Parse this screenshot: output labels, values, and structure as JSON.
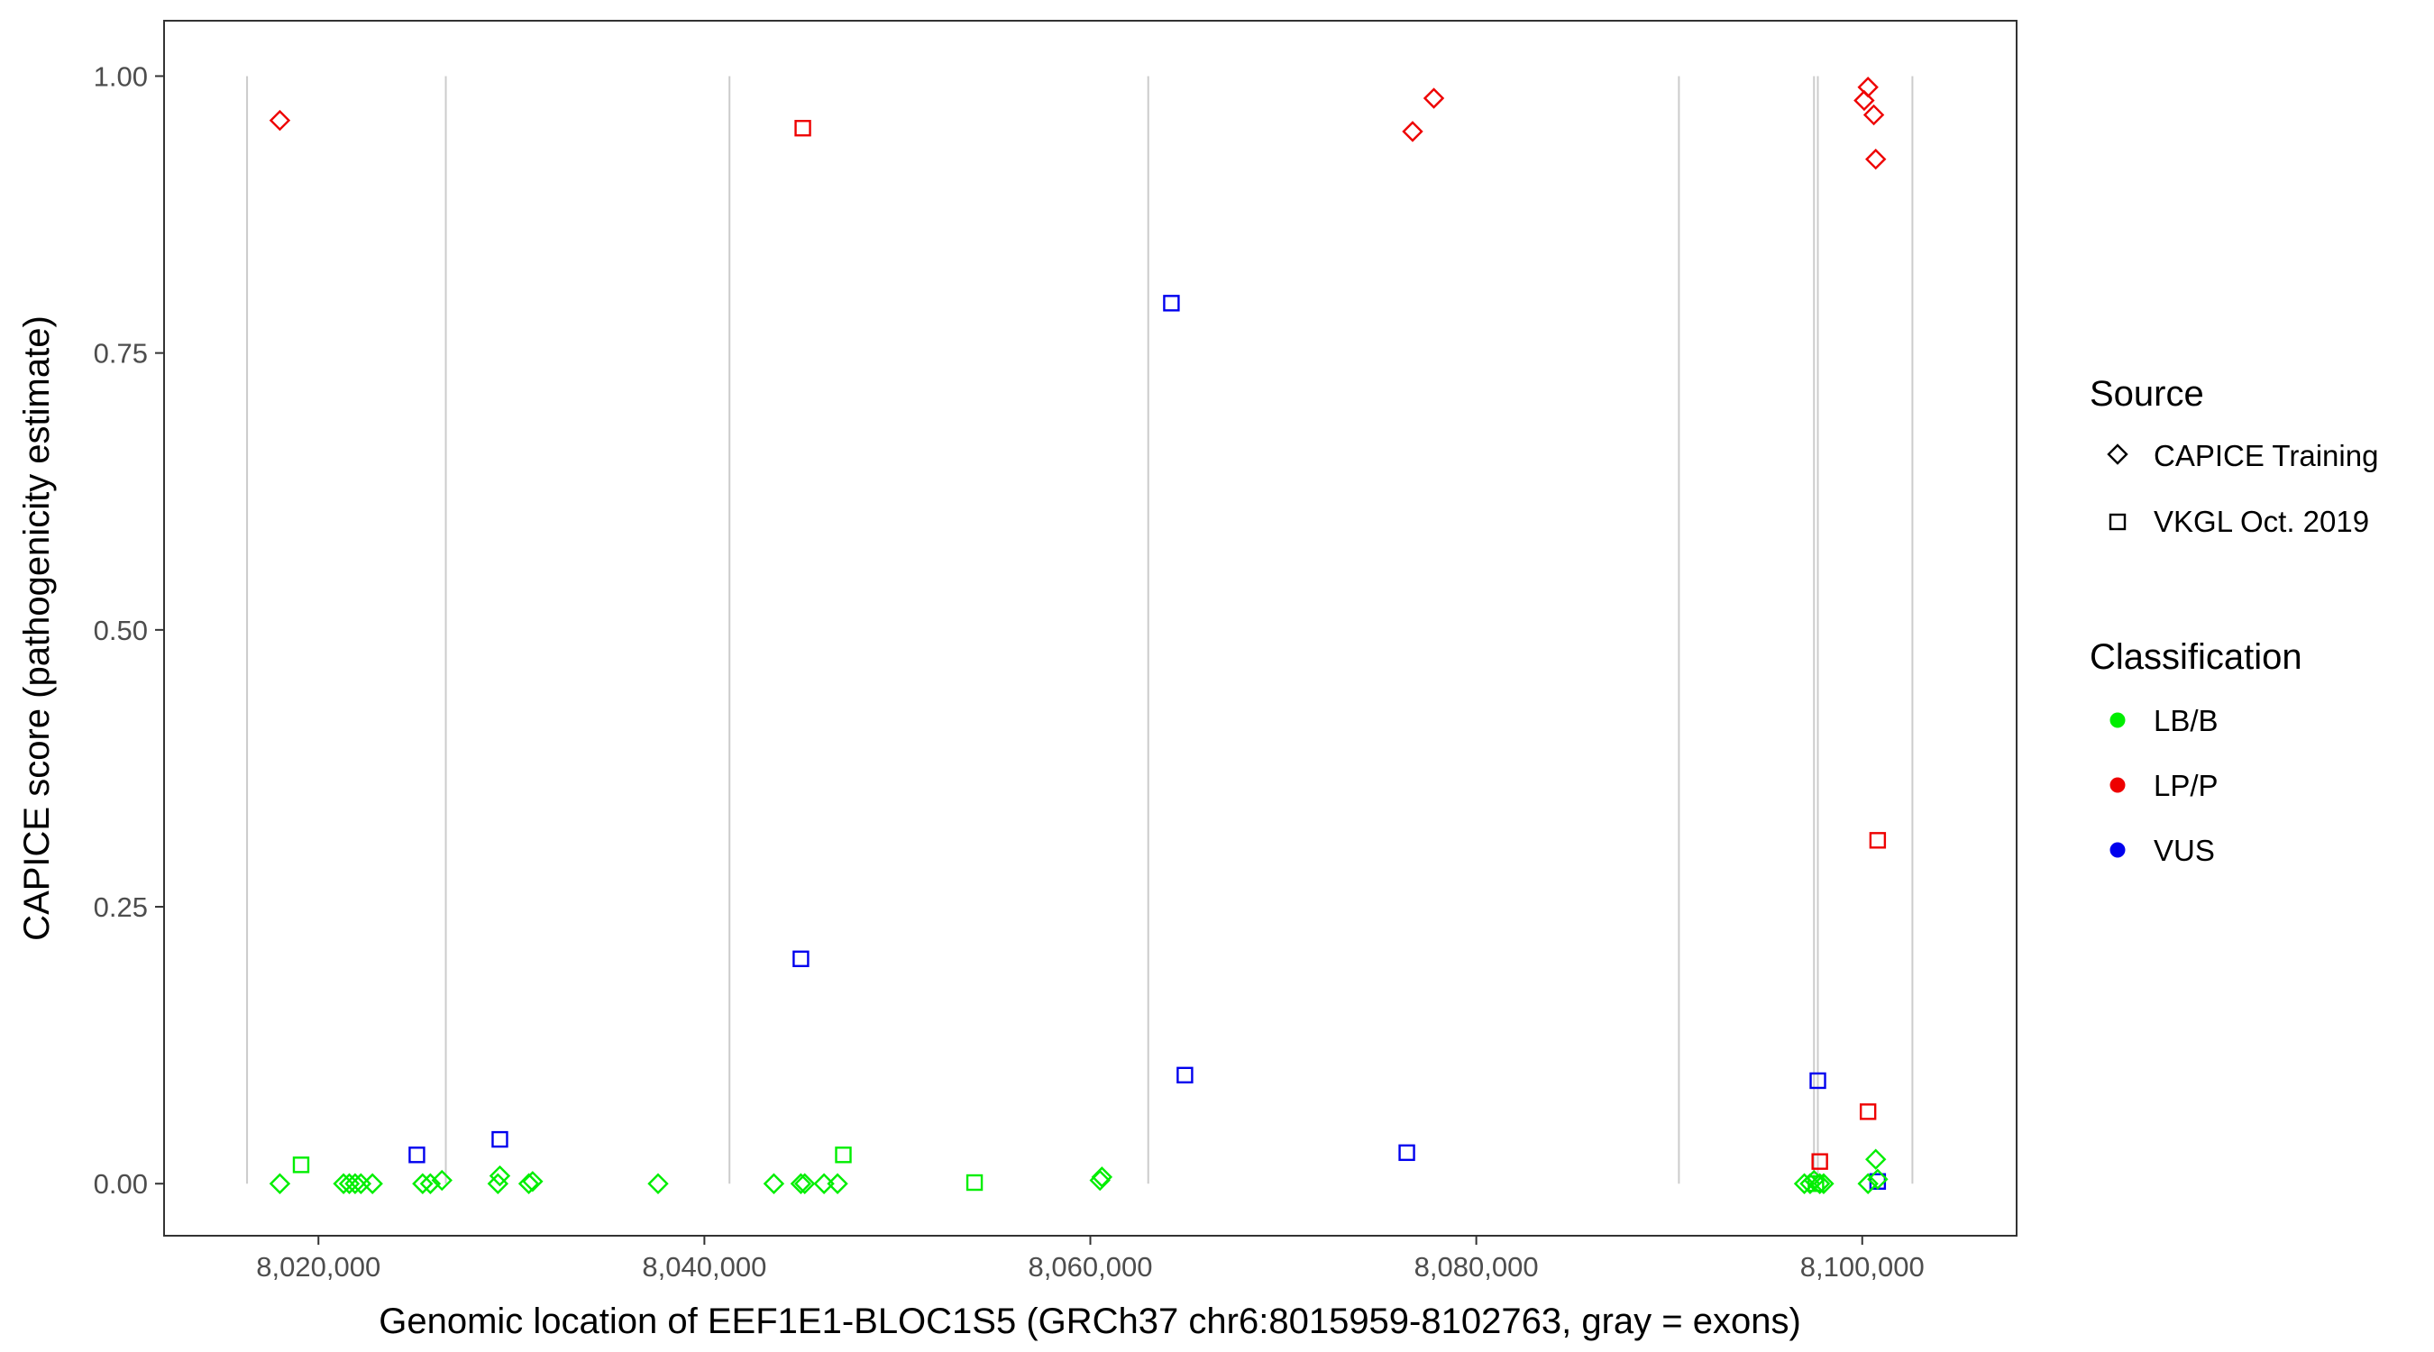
{
  "chart_data": {
    "type": "scatter",
    "xlabel": "Genomic location of EEF1E1-BLOC1S5 (GRCh37 chr6:8015959-8102763, gray = exons)",
    "ylabel": "CAPICE score (pathogenicity estimate)",
    "xlim": [
      8012000,
      8108000
    ],
    "ylim": [
      -0.047,
      1.05
    ],
    "x_ticks": [
      8020000,
      8040000,
      8060000,
      8080000,
      8100000
    ],
    "x_tick_labels": [
      "8,020,000",
      "8,040,000",
      "8,060,000",
      "8,080,000",
      "8,100,000"
    ],
    "y_ticks": [
      0,
      0.25,
      0.5,
      0.75,
      1
    ],
    "y_tick_labels": [
      "0.00",
      "0.25",
      "0.50",
      "0.75",
      "1.00"
    ],
    "grid": false,
    "exon_lines": [
      8016300,
      8026600,
      8041300,
      8063000,
      8090500,
      8097500,
      8097700,
      8102600
    ],
    "legend": {
      "placement": "right",
      "source_title": "Source",
      "source_entries": [
        {
          "label": "CAPICE Training",
          "shape": "diamond"
        },
        {
          "label": "VKGL Oct. 2019",
          "shape": "square"
        }
      ],
      "class_title": "Classification",
      "class_entries": [
        {
          "label": "LB/B",
          "color": "#00ee00"
        },
        {
          "label": "LP/P",
          "color": "#ee0000"
        },
        {
          "label": "VUS",
          "color": "#0000ee"
        }
      ]
    },
    "colors": {
      "LB/B": "#00ee00",
      "LP/P": "#ee0000",
      "VUS": "#0000ee"
    },
    "points": [
      {
        "x": 8018000,
        "y": 0.96,
        "cls": "LP/P",
        "src": "diamond"
      },
      {
        "x": 8045100,
        "y": 0.953,
        "cls": "LP/P",
        "src": "square"
      },
      {
        "x": 8076700,
        "y": 0.95,
        "cls": "LP/P",
        "src": "diamond"
      },
      {
        "x": 8077800,
        "y": 0.98,
        "cls": "LP/P",
        "src": "diamond"
      },
      {
        "x": 8100300,
        "y": 0.99,
        "cls": "LP/P",
        "src": "diamond"
      },
      {
        "x": 8100100,
        "y": 0.978,
        "cls": "LP/P",
        "src": "diamond"
      },
      {
        "x": 8100600,
        "y": 0.965,
        "cls": "LP/P",
        "src": "diamond"
      },
      {
        "x": 8100700,
        "y": 0.925,
        "cls": "LP/P",
        "src": "diamond"
      },
      {
        "x": 8100800,
        "y": 0.31,
        "cls": "LP/P",
        "src": "square"
      },
      {
        "x": 8100300,
        "y": 0.065,
        "cls": "LP/P",
        "src": "square"
      },
      {
        "x": 8097800,
        "y": 0.02,
        "cls": "LP/P",
        "src": "square"
      },
      {
        "x": 8064200,
        "y": 0.795,
        "cls": "VUS",
        "src": "square"
      },
      {
        "x": 8045000,
        "y": 0.203,
        "cls": "VUS",
        "src": "square"
      },
      {
        "x": 8064900,
        "y": 0.098,
        "cls": "VUS",
        "src": "square"
      },
      {
        "x": 8097700,
        "y": 0.093,
        "cls": "VUS",
        "src": "square"
      },
      {
        "x": 8029400,
        "y": 0.04,
        "cls": "VUS",
        "src": "square"
      },
      {
        "x": 8076400,
        "y": 0.028,
        "cls": "VUS",
        "src": "square"
      },
      {
        "x": 8025100,
        "y": 0.026,
        "cls": "VUS",
        "src": "square"
      },
      {
        "x": 8100800,
        "y": 0.002,
        "cls": "VUS",
        "src": "square"
      },
      {
        "x": 8018000,
        "y": 0.0,
        "cls": "LB/B",
        "src": "diamond"
      },
      {
        "x": 8019100,
        "y": 0.017,
        "cls": "LB/B",
        "src": "square"
      },
      {
        "x": 8021300,
        "y": 0.0,
        "cls": "LB/B",
        "src": "diamond"
      },
      {
        "x": 8021600,
        "y": 0.0,
        "cls": "LB/B",
        "src": "diamond"
      },
      {
        "x": 8021900,
        "y": 0.0,
        "cls": "LB/B",
        "src": "diamond"
      },
      {
        "x": 8022200,
        "y": 0.0,
        "cls": "LB/B",
        "src": "diamond"
      },
      {
        "x": 8022800,
        "y": 0.0,
        "cls": "LB/B",
        "src": "diamond"
      },
      {
        "x": 8025400,
        "y": 0.0,
        "cls": "LB/B",
        "src": "diamond"
      },
      {
        "x": 8025800,
        "y": 0.0,
        "cls": "LB/B",
        "src": "diamond"
      },
      {
        "x": 8026400,
        "y": 0.003,
        "cls": "LB/B",
        "src": "diamond"
      },
      {
        "x": 8029300,
        "y": 0.0,
        "cls": "LB/B",
        "src": "diamond"
      },
      {
        "x": 8029400,
        "y": 0.007,
        "cls": "LB/B",
        "src": "diamond"
      },
      {
        "x": 8030900,
        "y": 0.0,
        "cls": "LB/B",
        "src": "diamond"
      },
      {
        "x": 8031100,
        "y": 0.002,
        "cls": "LB/B",
        "src": "diamond"
      },
      {
        "x": 8037600,
        "y": 0.0,
        "cls": "LB/B",
        "src": "diamond"
      },
      {
        "x": 8043600,
        "y": 0.0,
        "cls": "LB/B",
        "src": "diamond"
      },
      {
        "x": 8045000,
        "y": 0.0,
        "cls": "LB/B",
        "src": "diamond"
      },
      {
        "x": 8045200,
        "y": 0.0,
        "cls": "LB/B",
        "src": "diamond"
      },
      {
        "x": 8046200,
        "y": 0.0,
        "cls": "LB/B",
        "src": "diamond"
      },
      {
        "x": 8046900,
        "y": 0.0,
        "cls": "LB/B",
        "src": "diamond"
      },
      {
        "x": 8047200,
        "y": 0.026,
        "cls": "LB/B",
        "src": "square"
      },
      {
        "x": 8054000,
        "y": 0.001,
        "cls": "LB/B",
        "src": "square"
      },
      {
        "x": 8060500,
        "y": 0.003,
        "cls": "LB/B",
        "src": "diamond"
      },
      {
        "x": 8060600,
        "y": 0.006,
        "cls": "LB/B",
        "src": "diamond"
      },
      {
        "x": 8097000,
        "y": 0.0,
        "cls": "LB/B",
        "src": "diamond"
      },
      {
        "x": 8097300,
        "y": 0.0,
        "cls": "LB/B",
        "src": "diamond"
      },
      {
        "x": 8097500,
        "y": 0.003,
        "cls": "LB/B",
        "src": "diamond"
      },
      {
        "x": 8097600,
        "y": 0.0,
        "cls": "LB/B",
        "src": "square"
      },
      {
        "x": 8097800,
        "y": 0.0,
        "cls": "LB/B",
        "src": "diamond"
      },
      {
        "x": 8098000,
        "y": 0.0,
        "cls": "LB/B",
        "src": "diamond"
      },
      {
        "x": 8100300,
        "y": 0.0,
        "cls": "LB/B",
        "src": "diamond"
      },
      {
        "x": 8100700,
        "y": 0.022,
        "cls": "LB/B",
        "src": "diamond"
      },
      {
        "x": 8100800,
        "y": 0.004,
        "cls": "LB/B",
        "src": "diamond"
      }
    ]
  }
}
